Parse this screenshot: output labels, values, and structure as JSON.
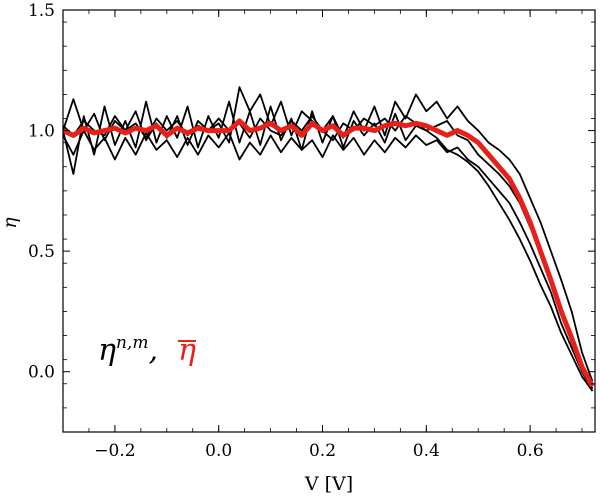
{
  "chart_data": {
    "type": "line",
    "title": "",
    "xlabel": "V [V]",
    "ylabel": "η",
    "xlim": [
      -0.3,
      0.725
    ],
    "ylim": [
      -0.25,
      1.5
    ],
    "xticks": [
      -0.2,
      0.0,
      0.2,
      0.4,
      0.6
    ],
    "xtick_labels": [
      "−0.2",
      "0.0",
      "0.2",
      "0.4",
      "0.6"
    ],
    "yticks": [
      0.0,
      0.5,
      1.0,
      1.5
    ],
    "ytick_labels": [
      "0.0",
      "0.5",
      "1.0",
      "1.5"
    ],
    "grid": false,
    "legend": {
      "placement": "bottom-left",
      "entries": [
        {
          "base": "η",
          "sup": "n,m",
          "sep": ",",
          "color": "#000000"
        },
        {
          "base": "η",
          "overline": true,
          "color": "#e8201a"
        }
      ]
    },
    "x": [
      -0.3,
      -0.28,
      -0.26,
      -0.24,
      -0.22,
      -0.2,
      -0.18,
      -0.16,
      -0.14,
      -0.12,
      -0.1,
      -0.08,
      -0.06,
      -0.04,
      -0.02,
      0.0,
      0.02,
      0.04,
      0.06,
      0.08,
      0.1,
      0.12,
      0.14,
      0.16,
      0.18,
      0.2,
      0.22,
      0.24,
      0.26,
      0.28,
      0.3,
      0.32,
      0.34,
      0.36,
      0.38,
      0.4,
      0.42,
      0.44,
      0.46,
      0.48,
      0.5,
      0.52,
      0.54,
      0.56,
      0.58,
      0.6,
      0.62,
      0.64,
      0.66,
      0.68,
      0.7,
      0.72
    ],
    "series": [
      {
        "color": "#000000",
        "width": 1.8,
        "values": [
          1.0,
          0.82,
          1.06,
          0.9,
          1.1,
          0.94,
          1.04,
          0.93,
          1.12,
          0.95,
          1.06,
          0.97,
          1.1,
          0.93,
          1.06,
          0.97,
          1.12,
          0.95,
          1.08,
          0.94,
          1.1,
          0.96,
          1.05,
          0.92,
          1.08,
          0.95,
          1.06,
          0.93,
          1.04,
          0.98,
          1.03,
          0.95,
          1.07,
          0.96,
          1.02,
          1.0,
          0.97,
          0.92,
          0.9,
          0.87,
          0.83,
          0.77,
          0.7,
          0.63,
          0.55,
          0.46,
          0.36,
          0.27,
          0.16,
          0.07,
          -0.02,
          -0.08
        ]
      },
      {
        "color": "#000000",
        "width": 1.8,
        "values": [
          1.0,
          1.13,
          1.0,
          1.07,
          0.96,
          1.04,
          1.0,
          1.08,
          0.96,
          1.03,
          0.97,
          1.06,
          0.94,
          1.04,
          1.0,
          1.03,
          0.95,
          1.18,
          1.08,
          1.15,
          1.02,
          1.12,
          0.98,
          1.08,
          1.04,
          1.0,
          1.06,
          0.97,
          1.08,
          1.0,
          1.1,
          0.98,
          1.12,
          1.05,
          1.15,
          1.08,
          1.12,
          1.05,
          1.1,
          1.04,
          1.0,
          0.95,
          0.92,
          0.88,
          0.82,
          0.72,
          0.62,
          0.5,
          0.38,
          0.25,
          0.08,
          -0.04
        ]
      },
      {
        "color": "#000000",
        "width": 1.8,
        "values": [
          0.98,
          0.9,
          1.0,
          0.92,
          0.97,
          0.88,
          0.97,
          0.9,
          0.99,
          0.92,
          0.96,
          0.89,
          0.97,
          0.9,
          0.98,
          0.93,
          0.99,
          0.88,
          0.95,
          0.9,
          0.98,
          0.91,
          0.97,
          0.92,
          0.96,
          0.89,
          0.98,
          0.92,
          0.97,
          0.9,
          0.96,
          0.91,
          0.97,
          0.93,
          0.98,
          0.94,
          0.96,
          0.91,
          0.93,
          0.88,
          0.85,
          0.8,
          0.75,
          0.7,
          0.62,
          0.53,
          0.43,
          0.33,
          0.2,
          0.1,
          0.0,
          -0.08
        ]
      },
      {
        "color": "#000000",
        "width": 1.8,
        "values": [
          1.02,
          0.98,
          1.04,
          1.0,
          0.98,
          1.06,
          1.0,
          1.03,
          0.97,
          1.05,
          1.0,
          1.04,
          0.98,
          1.02,
          1.0,
          1.05,
          1.0,
          1.03,
          0.97,
          1.05,
          1.0,
          0.98,
          1.04,
          1.0,
          1.06,
          1.0,
          0.96,
          1.03,
          1.0,
          1.05,
          1.02,
          1.05,
          1.0,
          1.06,
          1.03,
          1.0,
          1.02,
          1.04,
          0.98,
          0.96,
          0.9,
          0.86,
          0.82,
          0.77,
          0.7,
          0.6,
          0.5,
          0.38,
          0.26,
          0.14,
          0.02,
          -0.07
        ]
      },
      {
        "color": "#e8201a",
        "width": 5,
        "values": [
          1.0,
          0.98,
          1.01,
          0.99,
          1.0,
          1.01,
          0.99,
          1.01,
          1.0,
          1.02,
          0.98,
          1.01,
          0.99,
          1.01,
          1.0,
          1.0,
          1.0,
          1.04,
          1.0,
          1.01,
          1.03,
          1.0,
          1.02,
          0.98,
          1.03,
          1.0,
          1.02,
          0.98,
          1.01,
          1.01,
          1.0,
          1.02,
          1.03,
          1.02,
          1.03,
          1.02,
          1.0,
          0.98,
          1.0,
          0.98,
          0.95,
          0.9,
          0.85,
          0.8,
          0.72,
          0.62,
          0.5,
          0.38,
          0.25,
          0.14,
          0.02,
          -0.06
        ]
      }
    ]
  }
}
